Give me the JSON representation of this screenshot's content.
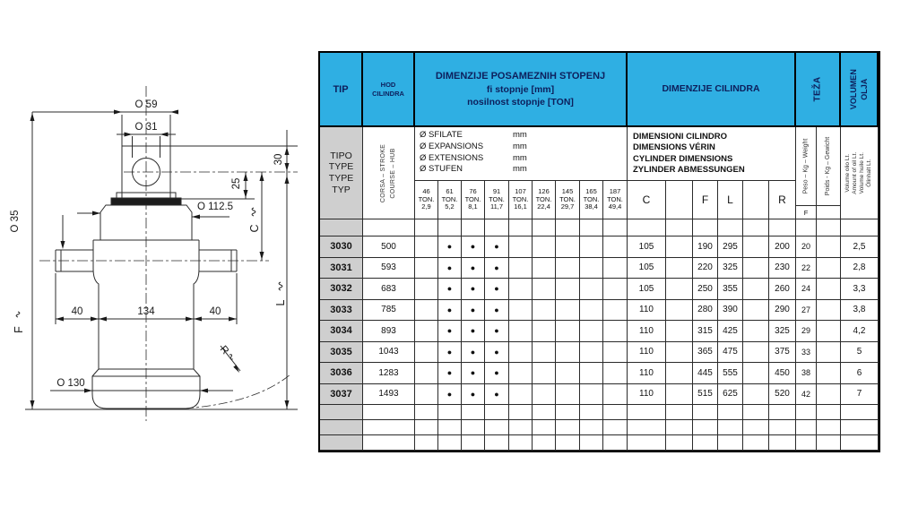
{
  "drawing": {
    "dia_top": "O 59",
    "dia_eye": "O 31",
    "dim_30": "30",
    "dim_25": "25",
    "dia_collar": "O 112.5",
    "dia_pin": "O 35",
    "dim_c": "C",
    "dim_l": "L",
    "dim_f": "F",
    "dim_r": "R",
    "dim_40_left": "40",
    "dim_134": "134",
    "dim_40_right": "40",
    "dia_bottom": "O 130"
  },
  "table": {
    "bullet": "●",
    "header": {
      "tip": "TIP",
      "hod": [
        "HOD",
        "CILINDRA"
      ],
      "stages_title": [
        "DIMENZIJE POSAMEZNIH STOPENJ",
        "fi stopnje [mm]",
        "nosilnost stopnje [TON]"
      ],
      "cylinder": "DIMENZIJE CILINDRA",
      "weight": "TEŽA",
      "volume": [
        "VOLUMEN",
        "OLJA"
      ]
    },
    "subheader": {
      "tipo": [
        "TIPO",
        "TYPE",
        "TYPE",
        "TYP"
      ],
      "corsa": [
        "CORSA – STROKE",
        "COURSE – HUB"
      ],
      "stage_names": [
        {
          "name": "Ø SFILATE",
          "unit": "mm"
        },
        {
          "name": "Ø EXPANSIONS",
          "unit": "mm"
        },
        {
          "name": "Ø EXTENSIONS",
          "unit": "mm"
        },
        {
          "name": "Ø STUFEN",
          "unit": "mm"
        }
      ],
      "cyl_names": [
        "DIMENSIONI CILINDRO",
        "DIMENSIONS VÉRIN",
        "CYLINDER DIMENSIONS",
        "ZYLINDER ABMESSUNGEN"
      ],
      "weight_cols": [
        "Peso – Kg – Weight",
        "Poids - Kg – Gewicht"
      ],
      "weight_sub": "F",
      "volume_lines": [
        "Volume olio Lt.",
        "Amount of oil Lt.",
        "Volume huile Lt.",
        "Ölinhalt Lt."
      ]
    },
    "stage_columns": [
      {
        "dia": "46",
        "ton": "TON.",
        "load": "2,9"
      },
      {
        "dia": "61",
        "ton": "TON.",
        "load": "5,2"
      },
      {
        "dia": "76",
        "ton": "TON.",
        "load": "8,1"
      },
      {
        "dia": "91",
        "ton": "TON.",
        "load": "11,7"
      },
      {
        "dia": "107",
        "ton": "TON.",
        "load": "16,1"
      },
      {
        "dia": "126",
        "ton": "TON.",
        "load": "22,4"
      },
      {
        "dia": "145",
        "ton": "TON.",
        "load": "29,7"
      },
      {
        "dia": "165",
        "ton": "TON.",
        "load": "38,4"
      },
      {
        "dia": "187",
        "ton": "TON.",
        "load": "49,4"
      }
    ],
    "dim_letters": [
      "C",
      "",
      "F",
      "L",
      "",
      "R"
    ],
    "rows": [
      {
        "tip": "3030",
        "hod": "500",
        "stages": [
          0,
          1,
          1,
          1,
          0,
          0,
          0,
          0,
          0
        ],
        "c": "105",
        "f": "190",
        "l": "295",
        "r": "200",
        "kg": "20",
        "oil": "2,5"
      },
      {
        "tip": "3031",
        "hod": "593",
        "stages": [
          0,
          1,
          1,
          1,
          0,
          0,
          0,
          0,
          0
        ],
        "c": "105",
        "f": "220",
        "l": "325",
        "r": "230",
        "kg": "22",
        "oil": "2,8"
      },
      {
        "tip": "3032",
        "hod": "683",
        "stages": [
          0,
          1,
          1,
          1,
          0,
          0,
          0,
          0,
          0
        ],
        "c": "105",
        "f": "250",
        "l": "355",
        "r": "260",
        "kg": "24",
        "oil": "3,3"
      },
      {
        "tip": "3033",
        "hod": "785",
        "stages": [
          0,
          1,
          1,
          1,
          0,
          0,
          0,
          0,
          0
        ],
        "c": "110",
        "f": "280",
        "l": "390",
        "r": "290",
        "kg": "27",
        "oil": "3,8"
      },
      {
        "tip": "3034",
        "hod": "893",
        "stages": [
          0,
          1,
          1,
          1,
          0,
          0,
          0,
          0,
          0
        ],
        "c": "110",
        "f": "315",
        "l": "425",
        "r": "325",
        "kg": "29",
        "oil": "4,2"
      },
      {
        "tip": "3035",
        "hod": "1043",
        "stages": [
          0,
          1,
          1,
          1,
          0,
          0,
          0,
          0,
          0
        ],
        "c": "110",
        "f": "365",
        "l": "475",
        "r": "375",
        "kg": "33",
        "oil": "5"
      },
      {
        "tip": "3036",
        "hod": "1283",
        "stages": [
          0,
          1,
          1,
          1,
          0,
          0,
          0,
          0,
          0
        ],
        "c": "110",
        "f": "445",
        "l": "555",
        "r": "450",
        "kg": "38",
        "oil": "6"
      },
      {
        "tip": "3037",
        "hod": "1493",
        "stages": [
          0,
          1,
          1,
          1,
          0,
          0,
          0,
          0,
          0
        ],
        "c": "110",
        "f": "515",
        "l": "625",
        "r": "520",
        "kg": "42",
        "oil": "7"
      }
    ],
    "empty_rows": 3
  }
}
